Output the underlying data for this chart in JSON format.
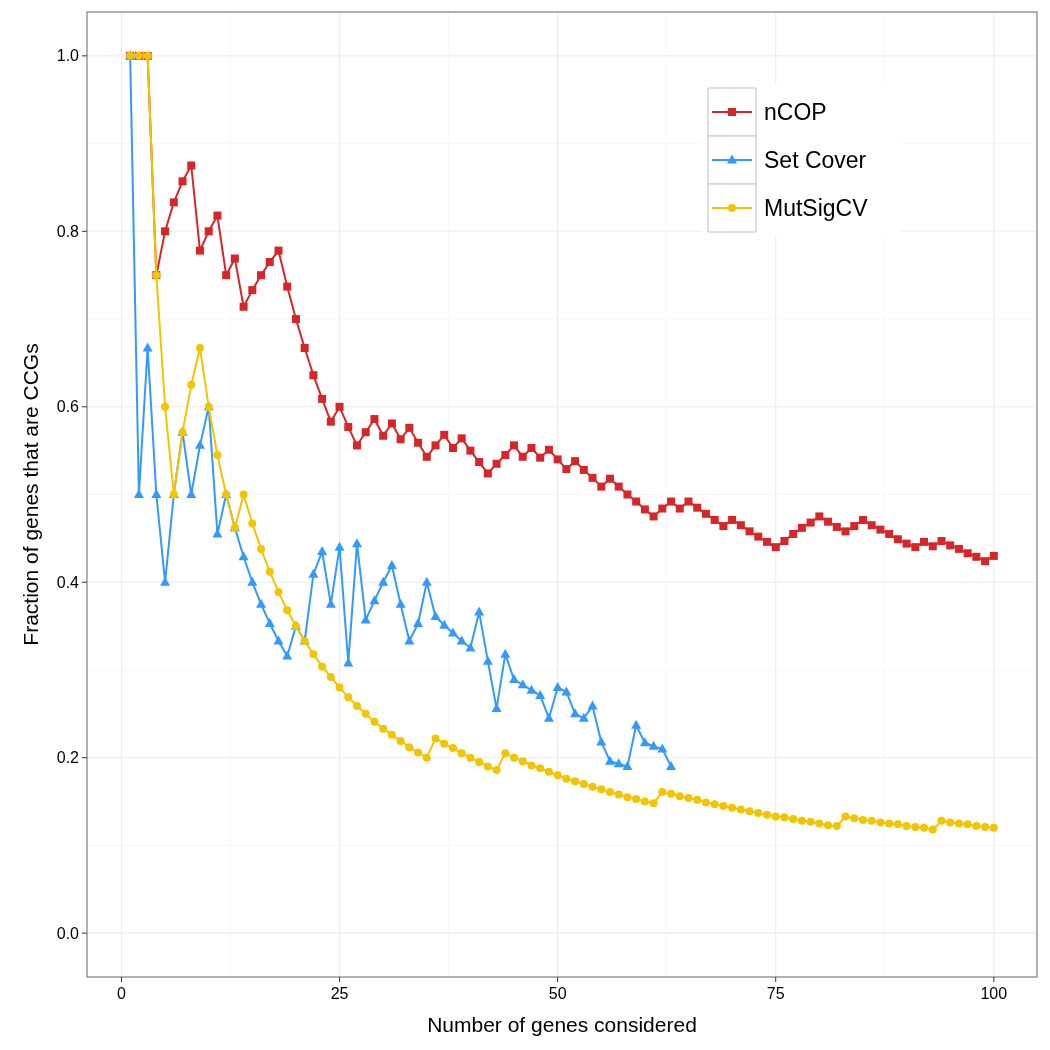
{
  "chart_data": {
    "type": "line",
    "xlabel": "Number of genes considered",
    "ylabel": "Fraction of genes that are CCGs",
    "x": [
      1,
      2,
      3,
      4,
      5,
      6,
      7,
      8,
      9,
      10,
      11,
      12,
      13,
      14,
      15,
      16,
      17,
      18,
      19,
      20,
      21,
      22,
      23,
      24,
      25,
      26,
      27,
      28,
      29,
      30,
      31,
      32,
      33,
      34,
      35,
      36,
      37,
      38,
      39,
      40,
      41,
      42,
      43,
      44,
      45,
      46,
      47,
      48,
      49,
      50,
      51,
      52,
      53,
      54,
      55,
      56,
      57,
      58,
      59,
      60,
      61,
      62,
      63,
      64,
      65,
      66,
      67,
      68,
      69,
      70,
      71,
      72,
      73,
      74,
      75,
      76,
      77,
      78,
      79,
      80,
      81,
      82,
      83,
      84,
      85,
      86,
      87,
      88,
      89,
      90,
      91,
      92,
      93,
      94,
      95,
      96,
      97,
      98,
      99,
      100
    ],
    "xlim": [
      -3.95,
      104.95
    ],
    "xticks": [
      0,
      25,
      50,
      75,
      100
    ],
    "ylim": [
      -0.05,
      1.05
    ],
    "yticks": [
      {
        "value": 0,
        "label": "0.0"
      },
      0.2,
      0.4,
      0.6,
      0.8,
      {
        "value": 1,
        "label": "1.0"
      }
    ],
    "grid": true,
    "legend": "top right",
    "series": [
      {
        "name": "nCOP",
        "color": "#d7262a",
        "marker": "square",
        "values": [
          1,
          1,
          1,
          0.75,
          0.8,
          0.833,
          0.857,
          0.875,
          0.778,
          0.8,
          0.818,
          0.75,
          0.769,
          0.714,
          0.733,
          0.75,
          0.765,
          0.778,
          0.737,
          0.7,
          0.667,
          0.636,
          0.609,
          0.583,
          0.6,
          0.577,
          0.556,
          0.571,
          0.586,
          0.567,
          0.581,
          0.563,
          0.576,
          0.559,
          0.543,
          0.556,
          0.568,
          0.553,
          0.564,
          0.55,
          0.537,
          0.524,
          0.535,
          0.545,
          0.556,
          0.543,
          0.553,
          0.542,
          0.551,
          0.54,
          0.529,
          0.538,
          0.528,
          0.519,
          0.509,
          0.518,
          0.509,
          0.5,
          0.492,
          0.483,
          0.475,
          0.484,
          0.492,
          0.484,
          0.492,
          0.485,
          0.478,
          0.471,
          0.464,
          0.471,
          0.465,
          0.458,
          0.452,
          0.446,
          0.44,
          0.447,
          0.455,
          0.462,
          0.468,
          0.475,
          0.469,
          0.463,
          0.458,
          0.464,
          0.471,
          0.465,
          0.46,
          0.455,
          0.449,
          0.444,
          0.44,
          0.446,
          0.441,
          0.447,
          0.442,
          0.438,
          0.433,
          0.429,
          0.424,
          0.43
        ]
      },
      {
        "name": "Set Cover",
        "color": "#3399ff",
        "marker": "triangle",
        "x": [
          1,
          2,
          3,
          4,
          5,
          6,
          7,
          8,
          9,
          10,
          11,
          12,
          13,
          14,
          15,
          16,
          17,
          18,
          19,
          20,
          21,
          22,
          23,
          24,
          25,
          26,
          27,
          28,
          29,
          30,
          31,
          32,
          33,
          34,
          35,
          36,
          37,
          38,
          39,
          40,
          41,
          42,
          43,
          44,
          45,
          46,
          47,
          48,
          49,
          50,
          51,
          52,
          53,
          54,
          55,
          56,
          57,
          58,
          59,
          60,
          61,
          62,
          63
        ],
        "values": [
          1,
          0.5,
          0.667,
          0.5,
          0.4,
          0.5,
          0.571,
          0.5,
          0.556,
          0.6,
          0.455,
          0.5,
          0.462,
          0.429,
          0.4,
          0.375,
          0.353,
          0.333,
          0.316,
          0.35,
          0.333,
          0.409,
          0.435,
          0.375,
          0.44,
          0.308,
          0.444,
          0.357,
          0.379,
          0.4,
          0.419,
          0.375,
          0.333,
          0.353,
          0.4,
          0.361,
          0.351,
          0.342,
          0.333,
          0.325,
          0.366,
          0.31,
          0.256,
          0.318,
          0.289,
          0.283,
          0.277,
          0.271,
          0.245,
          0.28,
          0.275,
          0.25,
          0.245,
          0.259,
          0.218,
          0.196,
          0.193,
          0.19,
          0.237,
          0.217,
          0.213,
          0.21,
          0.19
        ]
      },
      {
        "name": "MutSigCV",
        "color": "#f2c500",
        "marker": "circle",
        "values": [
          1,
          1,
          1,
          0.75,
          0.6,
          0.5,
          0.571,
          0.625,
          0.667,
          0.6,
          0.545,
          0.5,
          0.462,
          0.5,
          0.467,
          0.438,
          0.412,
          0.389,
          0.368,
          0.35,
          0.333,
          0.318,
          0.304,
          0.292,
          0.28,
          0.269,
          0.259,
          0.25,
          0.241,
          0.233,
          0.226,
          0.219,
          0.212,
          0.206,
          0.2,
          0.222,
          0.216,
          0.211,
          0.205,
          0.2,
          0.195,
          0.19,
          0.186,
          0.205,
          0.2,
          0.196,
          0.191,
          0.188,
          0.184,
          0.18,
          0.176,
          0.173,
          0.17,
          0.167,
          0.164,
          0.161,
          0.158,
          0.155,
          0.153,
          0.15,
          0.148,
          0.161,
          0.159,
          0.156,
          0.154,
          0.152,
          0.149,
          0.147,
          0.145,
          0.143,
          0.141,
          0.139,
          0.137,
          0.135,
          0.133,
          0.132,
          0.13,
          0.128,
          0.127,
          0.125,
          0.123,
          0.122,
          0.133,
          0.131,
          0.129,
          0.128,
          0.126,
          0.125,
          0.124,
          0.122,
          0.121,
          0.12,
          0.118,
          0.128,
          0.126,
          0.125,
          0.124,
          0.122,
          0.121,
          0.12
        ]
      }
    ]
  }
}
